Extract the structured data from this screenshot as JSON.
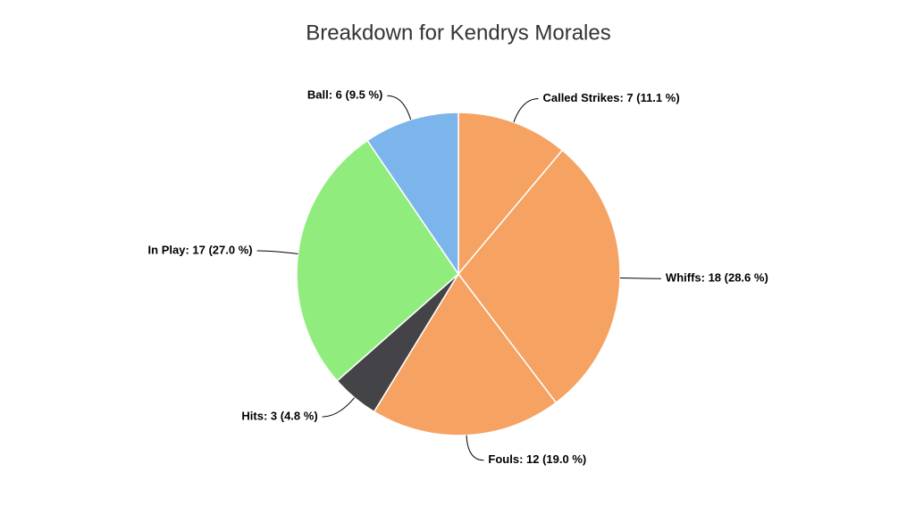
{
  "chart_data": {
    "type": "pie",
    "title": "Breakdown for Kendrys Morales",
    "values": [
      7,
      18,
      12,
      3,
      17,
      6
    ],
    "value_labels": [
      "Called Strikes: 7 (11.1 %)",
      "Whiffs: 18 (28.6 %)",
      "Fouls: 12 (19.0 %)",
      "Hits: 3 (4.8 %)",
      "In Play: 17 (27.0 %)",
      "Ball: 6 (9.5 %)"
    ],
    "colors": [
      "#f5a262",
      "#f5a262",
      "#f5a262",
      "#434348",
      "#90ed7d",
      "#7cb5ec"
    ]
  }
}
